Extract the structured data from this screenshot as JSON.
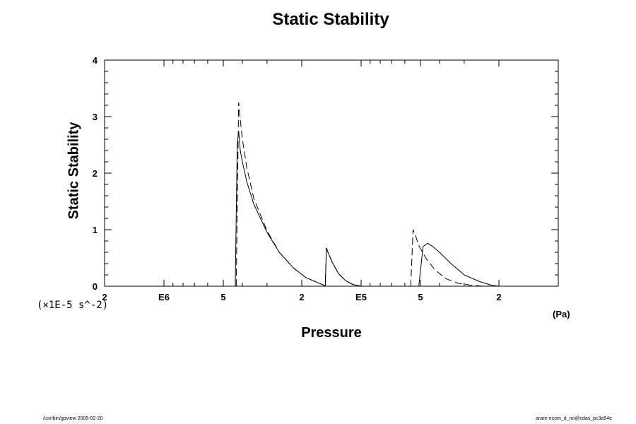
{
  "footer": {
    "left": "/usr/bin/gpview 2005-02-20",
    "right": "arare-ecom_d_no@cdas_pc3a54e"
  },
  "chart_data": {
    "type": "line",
    "title": "Static Stability",
    "xlabel": "Pressure",
    "ylabel": "Static Stability",
    "x_units": "(Pa)",
    "y_scale_label": "(×1E-5 s^-2)",
    "x_scale": "log",
    "x_reversed": true,
    "xlim": [
      2000000,
      10000
    ],
    "ylim": [
      0,
      4
    ],
    "x_major_ticks": [
      {
        "value": 2000000,
        "label": "2"
      },
      {
        "value": 1000000,
        "label": "E6"
      },
      {
        "value": 500000,
        "label": "5"
      },
      {
        "value": 200000,
        "label": "2"
      },
      {
        "value": 100000,
        "label": "E5"
      },
      {
        "value": 50000,
        "label": "5"
      },
      {
        "value": 20000,
        "label": "2"
      }
    ],
    "y_ticks": [
      0,
      1,
      2,
      3,
      4
    ],
    "grid": false,
    "series": [
      {
        "style": "solid",
        "x": [
          435000,
          425000,
          418000,
          410000,
          400000,
          380000,
          350000,
          300000,
          260000,
          220000,
          190000,
          160000,
          152000,
          150000,
          148000,
          140000,
          130000,
          120000,
          110000,
          100000,
          51000,
          48500,
          46000,
          44000,
          40000,
          35000,
          30000,
          25000,
          22000,
          20000
        ],
        "y": [
          0.0,
          2.5,
          2.75,
          2.4,
          2.2,
          1.85,
          1.45,
          0.95,
          0.6,
          0.32,
          0.15,
          0.04,
          0.01,
          0.68,
          0.62,
          0.42,
          0.22,
          0.1,
          0.03,
          0.0,
          0.0,
          0.7,
          0.76,
          0.72,
          0.6,
          0.4,
          0.2,
          0.08,
          0.02,
          0.0
        ]
      },
      {
        "style": "dashed",
        "x": [
          430000,
          418000,
          410000,
          400000,
          380000,
          350000,
          300000,
          260000,
          220000,
          190000,
          160000,
          152000,
          150000,
          148000,
          140000,
          130000,
          120000,
          110000,
          100000,
          56000,
          54500,
          53000,
          51000,
          47000,
          42000,
          37000,
          32000,
          28000,
          25000,
          22000
        ],
        "y": [
          0.0,
          3.25,
          2.95,
          2.6,
          2.1,
          1.55,
          0.98,
          0.6,
          0.32,
          0.15,
          0.04,
          0.01,
          0.68,
          0.62,
          0.42,
          0.22,
          0.1,
          0.03,
          0.0,
          0.0,
          1.0,
          0.9,
          0.72,
          0.5,
          0.28,
          0.13,
          0.05,
          0.02,
          0.005,
          0.0
        ]
      }
    ]
  }
}
